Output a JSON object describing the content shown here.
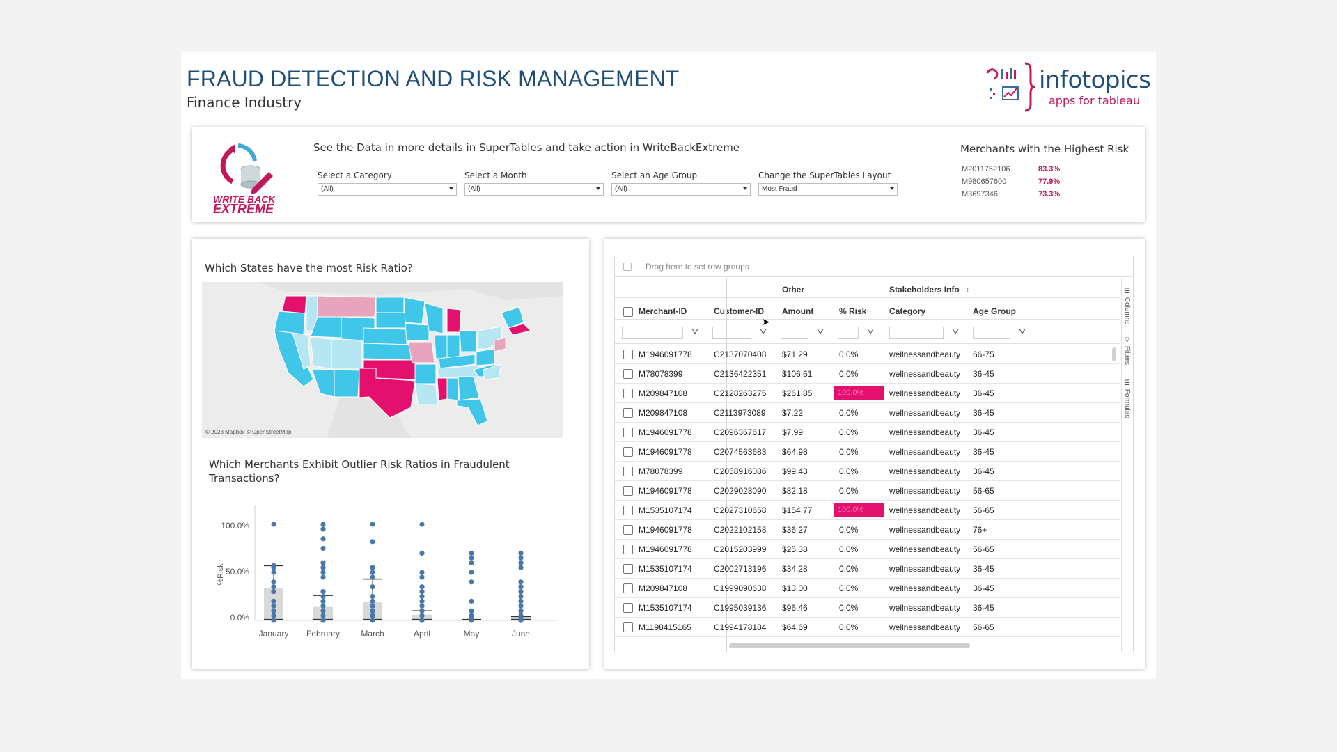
{
  "header": {
    "title": "FRAUD DETECTION AND RISK MANAGEMENT",
    "subtitle": "Finance Industry",
    "brand": "infotopics",
    "brand_tag": "apps for tableau"
  },
  "writeback": {
    "logo_line1": "WRITE BACK",
    "logo_line2": "EXTREME",
    "description": "See the Data in more details in SuperTables and take action in WriteBackExtreme"
  },
  "filters": [
    {
      "label": "Select a Category",
      "value": "(All)"
    },
    {
      "label": "Select a Month",
      "value": "(All)"
    },
    {
      "label": "Select an Age Group",
      "value": "(All)"
    },
    {
      "label": "Change the SuperTables Layout",
      "value": "Most Fraud"
    }
  ],
  "highest_risk": {
    "title": "Merchants with the Highest Risk",
    "items": [
      {
        "id": "M2011752106",
        "pct": "83.3%"
      },
      {
        "id": "M980657600",
        "pct": "77.9%"
      },
      {
        "id": "M3697346",
        "pct": "73.3%"
      }
    ]
  },
  "map": {
    "question": "Which States have the most Risk Ratio?",
    "attribution": "© 2023 Mapbox © OpenStreetMap"
  },
  "box": {
    "question": "Which Merchants Exhibit Outlier Risk Ratios in Fraudulent Transactions?"
  },
  "chart_data": {
    "type": "scatter",
    "ylabel": "%Risk",
    "y_ticks": [
      "100.0%",
      "50.0%",
      "0.0%"
    ],
    "ylim": [
      0,
      100
    ],
    "categories": [
      "January",
      "February",
      "March",
      "April",
      "May",
      "June"
    ],
    "series": [
      {
        "values": [
          [
            0,
            5,
            10,
            15,
            20,
            30,
            35,
            40,
            50,
            55,
            57,
            100
          ],
          [
            0,
            5,
            10,
            15,
            20,
            25,
            30,
            45,
            50,
            55,
            60,
            75,
            85,
            95,
            100
          ],
          [
            0,
            5,
            10,
            15,
            20,
            25,
            35,
            45,
            50,
            55,
            82,
            100
          ],
          [
            0,
            5,
            10,
            15,
            20,
            25,
            30,
            35,
            45,
            50,
            70,
            100
          ],
          [
            0,
            2,
            5,
            10,
            20,
            40,
            50,
            60,
            65,
            70
          ],
          [
            0,
            2,
            5,
            10,
            15,
            20,
            25,
            30,
            35,
            40,
            55,
            60,
            65,
            70
          ]
        ]
      }
    ],
    "box_stats": [
      {
        "q1": 0,
        "median": 1,
        "q3": 34,
        "whisker_high": 57
      },
      {
        "q1": 0,
        "median": 1,
        "q3": 14,
        "whisker_high": 26
      },
      {
        "q1": 0,
        "median": 1,
        "q3": 19,
        "whisker_high": 43
      },
      {
        "q1": 0,
        "median": 1,
        "q3": 6,
        "whisker_high": 10
      },
      {
        "q1": 0,
        "median": 0.5,
        "q3": 1,
        "whisker_high": 1
      },
      {
        "q1": 0,
        "median": 1,
        "q3": 3,
        "whisker_high": 4
      }
    ]
  },
  "table": {
    "group_hint": "Drag here to set row groups",
    "group_other": "Other",
    "group_stakeholders": "Stakeholders Info",
    "columns": [
      "Merchant-ID",
      "Customer-ID",
      "Amount",
      "% Risk",
      "Category",
      "Age Group"
    ],
    "side_tools": [
      "Columns",
      "Filters",
      "Formulas"
    ],
    "rows": [
      {
        "merchant": "M1946091778",
        "customer": "C2137070408",
        "amount": "$71.29",
        "risk": "0.0%",
        "risk_value": 0,
        "category": "wellnessandbeauty",
        "age": "66-75"
      },
      {
        "merchant": "M78078399",
        "customer": "C2136422351",
        "amount": "$106.61",
        "risk": "0.0%",
        "risk_value": 0,
        "category": "wellnessandbeauty",
        "age": "36-45"
      },
      {
        "merchant": "M209847108",
        "customer": "C2128263275",
        "amount": "$261.85",
        "risk": "100.0%",
        "risk_value": 100,
        "category": "wellnessandbeauty",
        "age": "36-45"
      },
      {
        "merchant": "M209847108",
        "customer": "C2113973089",
        "amount": "$7.22",
        "risk": "0.0%",
        "risk_value": 0,
        "category": "wellnessandbeauty",
        "age": "36-45"
      },
      {
        "merchant": "M1946091778",
        "customer": "C2096367617",
        "amount": "$7.99",
        "risk": "0.0%",
        "risk_value": 0,
        "category": "wellnessandbeauty",
        "age": "36-45"
      },
      {
        "merchant": "M1946091778",
        "customer": "C2074563683",
        "amount": "$64.98",
        "risk": "0.0%",
        "risk_value": 0,
        "category": "wellnessandbeauty",
        "age": "36-45"
      },
      {
        "merchant": "M78078399",
        "customer": "C2058916086",
        "amount": "$99.43",
        "risk": "0.0%",
        "risk_value": 0,
        "category": "wellnessandbeauty",
        "age": "36-45"
      },
      {
        "merchant": "M1946091778",
        "customer": "C2029028090",
        "amount": "$82.18",
        "risk": "0.0%",
        "risk_value": 0,
        "category": "wellnessandbeauty",
        "age": "56-65"
      },
      {
        "merchant": "M1535107174",
        "customer": "C2027310658",
        "amount": "$154.77",
        "risk": "100.0%",
        "risk_value": 100,
        "category": "wellnessandbeauty",
        "age": "56-65"
      },
      {
        "merchant": "M1946091778",
        "customer": "C2022102158",
        "amount": "$36.27",
        "risk": "0.0%",
        "risk_value": 0,
        "category": "wellnessandbeauty",
        "age": "76+"
      },
      {
        "merchant": "M1946091778",
        "customer": "C2015203999",
        "amount": "$25.38",
        "risk": "0.0%",
        "risk_value": 0,
        "category": "wellnessandbeauty",
        "age": "56-65"
      },
      {
        "merchant": "M1535107174",
        "customer": "C2002713196",
        "amount": "$34.28",
        "risk": "0.0%",
        "risk_value": 0,
        "category": "wellnessandbeauty",
        "age": "36-45"
      },
      {
        "merchant": "M209847108",
        "customer": "C1999090638",
        "amount": "$13.00",
        "risk": "0.0%",
        "risk_value": 0,
        "category": "wellnessandbeauty",
        "age": "36-45"
      },
      {
        "merchant": "M1535107174",
        "customer": "C1995039136",
        "amount": "$96.46",
        "risk": "0.0%",
        "risk_value": 0,
        "category": "wellnessandbeauty",
        "age": "36-45"
      },
      {
        "merchant": "M1198415165",
        "customer": "C1994178184",
        "amount": "$64.69",
        "risk": "0.0%",
        "risk_value": 0,
        "category": "wellnessandbeauty",
        "age": "56-65"
      }
    ]
  },
  "colors": {
    "title": "#1f4e79",
    "accent": "#c2185b",
    "risk_bar": "#e3106d",
    "map_low": "#3fc6e8",
    "map_light": "#b7e6f3",
    "map_pink": "#e3106d",
    "map_lightpink": "#e8a3bd",
    "box_dot": "#4a78a8",
    "box_fill": "#d9d9d9"
  }
}
